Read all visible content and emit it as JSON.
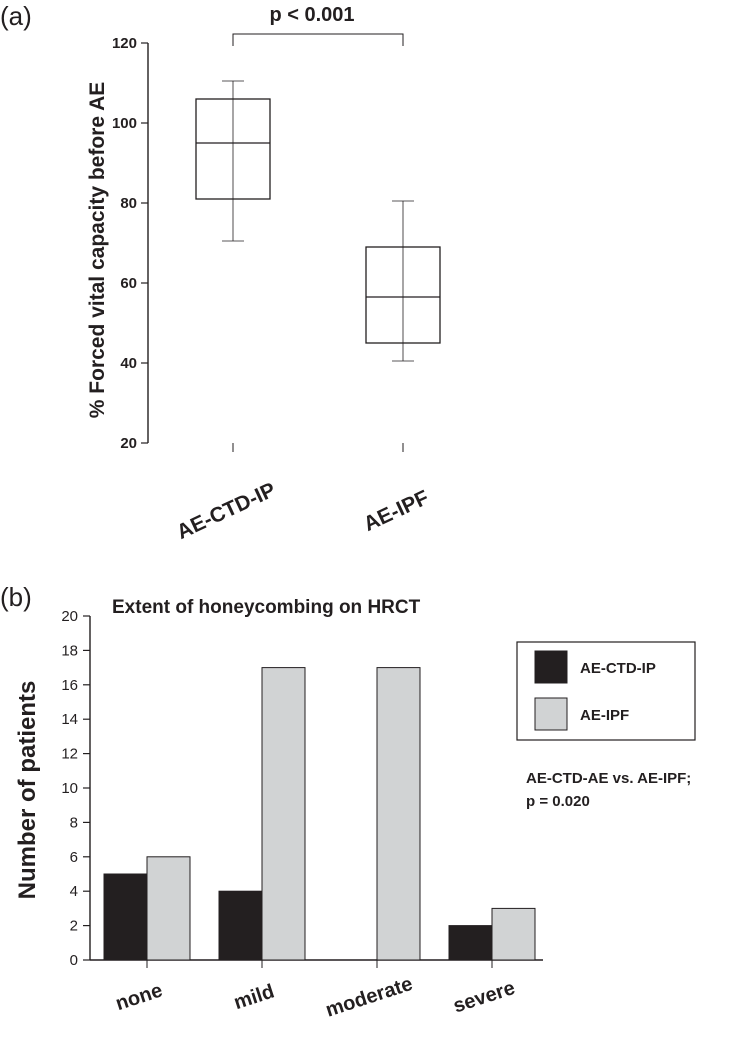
{
  "chart_data": [
    {
      "panel_label": "(a)",
      "type": "box",
      "ylabel": "% Forced vital capacity before AE",
      "ylim": [
        20,
        120
      ],
      "yticks": [
        20,
        40,
        60,
        80,
        100,
        120
      ],
      "categories": [
        "AE-CTD-IP",
        "AE-IPF"
      ],
      "boxes": [
        {
          "category": "AE-CTD-IP",
          "whisker_low": 70.5,
          "q1": 81,
          "median": 95,
          "q3": 106,
          "whisker_high": 110.5
        },
        {
          "category": "AE-IPF",
          "whisker_low": 40.5,
          "q1": 45,
          "median": 56.5,
          "q3": 69,
          "whisker_high": 80.5
        }
      ],
      "annotation": "p < 0.001"
    },
    {
      "panel_label": "(b)",
      "type": "bar",
      "title": "Extent of honeycombing on HRCT",
      "ylabel": "Number of patients",
      "ylim": [
        0,
        20
      ],
      "yticks": [
        0,
        2,
        4,
        6,
        8,
        10,
        12,
        14,
        16,
        18,
        20
      ],
      "categories": [
        "none",
        "mild",
        "moderate",
        "severe"
      ],
      "series": [
        {
          "name": "AE-CTD-IP",
          "color": "#231f20",
          "values": [
            5,
            4,
            0,
            2
          ]
        },
        {
          "name": "AE-IPF",
          "color": "#d1d3d4",
          "values": [
            6,
            17,
            17,
            3
          ]
        }
      ],
      "legend_position": "top-right",
      "annotation": [
        "AE-CTD-AE vs. AE-IPF;",
        "p = 0.020"
      ]
    }
  ]
}
